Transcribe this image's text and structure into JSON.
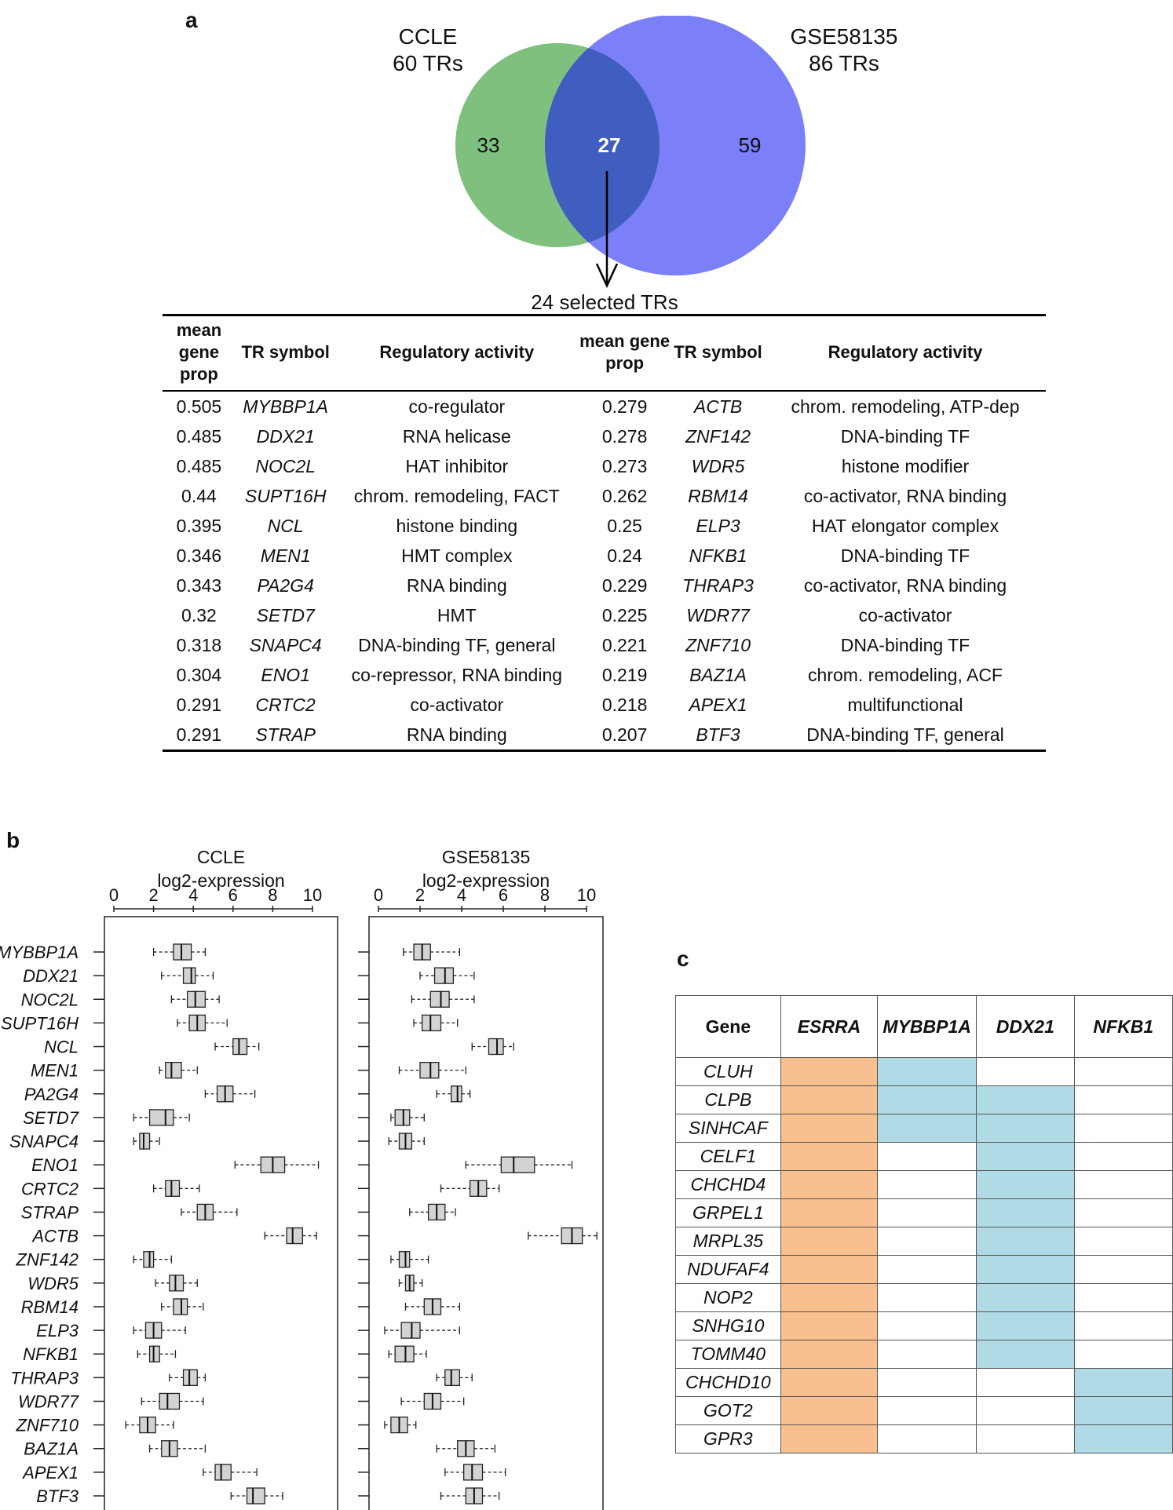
{
  "panel_a": {
    "label": "a",
    "venn": {
      "left_name": "CCLE",
      "left_count": "60 TRs",
      "right_name": "GSE58135",
      "right_count": "86 TRs",
      "left_only": "33",
      "overlap": "27",
      "right_only": "59",
      "left_color": "#7fc07f",
      "right_color": "#7b7ff8",
      "overlap_color": "#3f5ebf",
      "arrow_caption": "24 selected TRs"
    },
    "table": {
      "headers": [
        "mean gene prop",
        "TR symbol",
        "Regulatory activity",
        "mean gene prop",
        "TR symbol",
        "Regulatory activity"
      ],
      "rows": [
        [
          "0.505",
          "MYBBP1A",
          "co-regulator",
          "0.279",
          "ACTB",
          "chrom. remodeling, ATP-dep"
        ],
        [
          "0.485",
          "DDX21",
          "RNA helicase",
          "0.278",
          "ZNF142",
          "DNA-binding TF"
        ],
        [
          "0.485",
          "NOC2L",
          "HAT inhibitor",
          "0.273",
          "WDR5",
          "histone modifier"
        ],
        [
          "0.44",
          "SUPT16H",
          "chrom. remodeling, FACT",
          "0.262",
          "RBM14",
          "co-activator, RNA binding"
        ],
        [
          "0.395",
          "NCL",
          "histone binding",
          "0.25",
          "ELP3",
          "HAT elongator complex"
        ],
        [
          "0.346",
          "MEN1",
          "HMT complex",
          "0.24",
          "NFKB1",
          "DNA-binding TF"
        ],
        [
          "0.343",
          "PA2G4",
          "RNA binding",
          "0.229",
          "THRAP3",
          "co-activator, RNA binding"
        ],
        [
          "0.32",
          "SETD7",
          "HMT",
          "0.225",
          "WDR77",
          "co-activator"
        ],
        [
          "0.318",
          "SNAPC4",
          "DNA-binding TF, general",
          "0.221",
          "ZNF710",
          "DNA-binding TF"
        ],
        [
          "0.304",
          "ENO1",
          "co-repressor, RNA binding",
          "0.219",
          "BAZ1A",
          "chrom. remodeling, ACF"
        ],
        [
          "0.291",
          "CRTC2",
          "co-activator",
          "0.218",
          "APEX1",
          "multifunctional"
        ],
        [
          "0.291",
          "STRAP",
          "RNA binding",
          "0.207",
          "BTF3",
          "DNA-binding TF, general"
        ]
      ]
    }
  },
  "panel_b": {
    "label": "b",
    "chart_data": {
      "type": "boxplot",
      "orientation": "horizontal",
      "categories": [
        "MYBBP1A",
        "DDX21",
        "NOC2L",
        "SUPT16H",
        "NCL",
        "MEN1",
        "PA2G4",
        "SETD7",
        "SNAPC4",
        "ENO1",
        "CRTC2",
        "STRAP",
        "ACTB",
        "ZNF142",
        "WDR5",
        "RBM14",
        "ELP3",
        "NFKB1",
        "THRAP3",
        "WDR77",
        "ZNF710",
        "BAZ1A",
        "APEX1",
        "BTF3"
      ],
      "xlim": [
        0,
        11
      ],
      "ticks": [
        "0",
        "2",
        "4",
        "6",
        "8",
        "10"
      ],
      "series": [
        {
          "name": "CCLE",
          "title_line1": "CCLE",
          "title_line2": "log2-expression",
          "boxes": [
            [
              2.0,
              3.0,
              3.4,
              3.9,
              4.6
            ],
            [
              2.4,
              3.5,
              3.9,
              4.1,
              5.0
            ],
            [
              2.9,
              3.7,
              4.1,
              4.6,
              5.3
            ],
            [
              3.2,
              3.8,
              4.2,
              4.6,
              5.7
            ],
            [
              5.1,
              6.0,
              6.3,
              6.7,
              7.3
            ],
            [
              2.3,
              2.6,
              2.9,
              3.4,
              4.2
            ],
            [
              4.6,
              5.2,
              5.6,
              6.0,
              7.1
            ],
            [
              1.0,
              1.8,
              2.6,
              3.0,
              3.8
            ],
            [
              1.0,
              1.3,
              1.5,
              1.8,
              2.3
            ],
            [
              6.1,
              7.4,
              8.0,
              8.6,
              10.3
            ],
            [
              2.0,
              2.6,
              2.9,
              3.3,
              4.3
            ],
            [
              3.4,
              4.2,
              4.6,
              5.0,
              6.2
            ],
            [
              7.6,
              8.7,
              9.0,
              9.5,
              10.2
            ],
            [
              1.0,
              1.5,
              1.8,
              2.0,
              2.9
            ],
            [
              2.1,
              2.8,
              3.1,
              3.5,
              4.2
            ],
            [
              2.4,
              3.0,
              3.4,
              3.7,
              4.5
            ],
            [
              1.0,
              1.6,
              2.0,
              2.4,
              3.6
            ],
            [
              1.2,
              1.8,
              2.0,
              2.3,
              3.1
            ],
            [
              2.8,
              3.5,
              3.8,
              4.2,
              4.6
            ],
            [
              1.4,
              2.3,
              2.7,
              3.3,
              4.5
            ],
            [
              0.6,
              1.3,
              1.7,
              2.1,
              3.0
            ],
            [
              1.8,
              2.4,
              2.8,
              3.2,
              4.6
            ],
            [
              4.5,
              5.1,
              5.4,
              5.9,
              7.2
            ],
            [
              5.9,
              6.7,
              7.0,
              7.6,
              8.5
            ]
          ]
        },
        {
          "name": "GSE58135",
          "title_line1": "GSE58135",
          "title_line2": "log2-expression",
          "boxes": [
            [
              1.2,
              1.7,
              2.1,
              2.5,
              3.9
            ],
            [
              2.0,
              2.7,
              3.2,
              3.6,
              4.6
            ],
            [
              1.6,
              2.5,
              3.0,
              3.4,
              4.6
            ],
            [
              1.7,
              2.1,
              2.5,
              3.0,
              3.8
            ],
            [
              4.5,
              5.3,
              5.7,
              6.0,
              6.5
            ],
            [
              1.0,
              2.0,
              2.5,
              2.9,
              4.2
            ],
            [
              2.8,
              3.5,
              3.8,
              4.0,
              4.4
            ],
            [
              0.6,
              0.8,
              1.2,
              1.5,
              2.2
            ],
            [
              0.5,
              1.0,
              1.3,
              1.6,
              2.2
            ],
            [
              4.2,
              5.9,
              6.5,
              7.5,
              9.3
            ],
            [
              3.0,
              4.4,
              4.8,
              5.2,
              5.8
            ],
            [
              1.5,
              2.4,
              2.8,
              3.2,
              3.7
            ],
            [
              7.2,
              8.8,
              9.3,
              9.8,
              10.5
            ],
            [
              0.6,
              1.0,
              1.3,
              1.5,
              2.4
            ],
            [
              1.0,
              1.3,
              1.5,
              1.7,
              2.1
            ],
            [
              1.3,
              2.2,
              2.6,
              3.0,
              3.9
            ],
            [
              0.3,
              1.1,
              1.6,
              2.0,
              3.9
            ],
            [
              0.5,
              0.8,
              1.3,
              1.7,
              2.3
            ],
            [
              2.8,
              3.2,
              3.5,
              3.9,
              4.5
            ],
            [
              1.1,
              2.2,
              2.6,
              3.0,
              4.1
            ],
            [
              0.3,
              0.6,
              1.0,
              1.4,
              1.8
            ],
            [
              2.8,
              3.8,
              4.2,
              4.6,
              5.6
            ],
            [
              3.2,
              4.1,
              4.5,
              5.0,
              6.1
            ],
            [
              3.0,
              4.2,
              4.6,
              5.0,
              5.8
            ]
          ]
        }
      ]
    }
  },
  "panel_c": {
    "label": "c",
    "headers": [
      "Gene",
      "ESRRA",
      "MYBBP1A",
      "DDX21",
      "NFKB1"
    ],
    "colors": {
      "esrra": "#f9c08f",
      "target": "#b0dbe6"
    },
    "rows": [
      {
        "gene": "CLUH",
        "marks": [
          1,
          1,
          0,
          0
        ]
      },
      {
        "gene": "CLPB",
        "marks": [
          1,
          1,
          1,
          0
        ]
      },
      {
        "gene": "SINHCAF",
        "marks": [
          1,
          1,
          1,
          0
        ]
      },
      {
        "gene": "CELF1",
        "marks": [
          1,
          0,
          1,
          0
        ]
      },
      {
        "gene": "CHCHD4",
        "marks": [
          1,
          0,
          1,
          0
        ]
      },
      {
        "gene": "GRPEL1",
        "marks": [
          1,
          0,
          1,
          0
        ]
      },
      {
        "gene": "MRPL35",
        "marks": [
          1,
          0,
          1,
          0
        ]
      },
      {
        "gene": "NDUFAF4",
        "marks": [
          1,
          0,
          1,
          0
        ]
      },
      {
        "gene": "NOP2",
        "marks": [
          1,
          0,
          1,
          0
        ]
      },
      {
        "gene": "SNHG10",
        "marks": [
          1,
          0,
          1,
          0
        ]
      },
      {
        "gene": "TOMM40",
        "marks": [
          1,
          0,
          1,
          0
        ]
      },
      {
        "gene": "CHCHD10",
        "marks": [
          1,
          0,
          0,
          1
        ]
      },
      {
        "gene": "GOT2",
        "marks": [
          1,
          0,
          0,
          1
        ]
      },
      {
        "gene": "GPR3",
        "marks": [
          1,
          0,
          0,
          1
        ]
      }
    ]
  }
}
